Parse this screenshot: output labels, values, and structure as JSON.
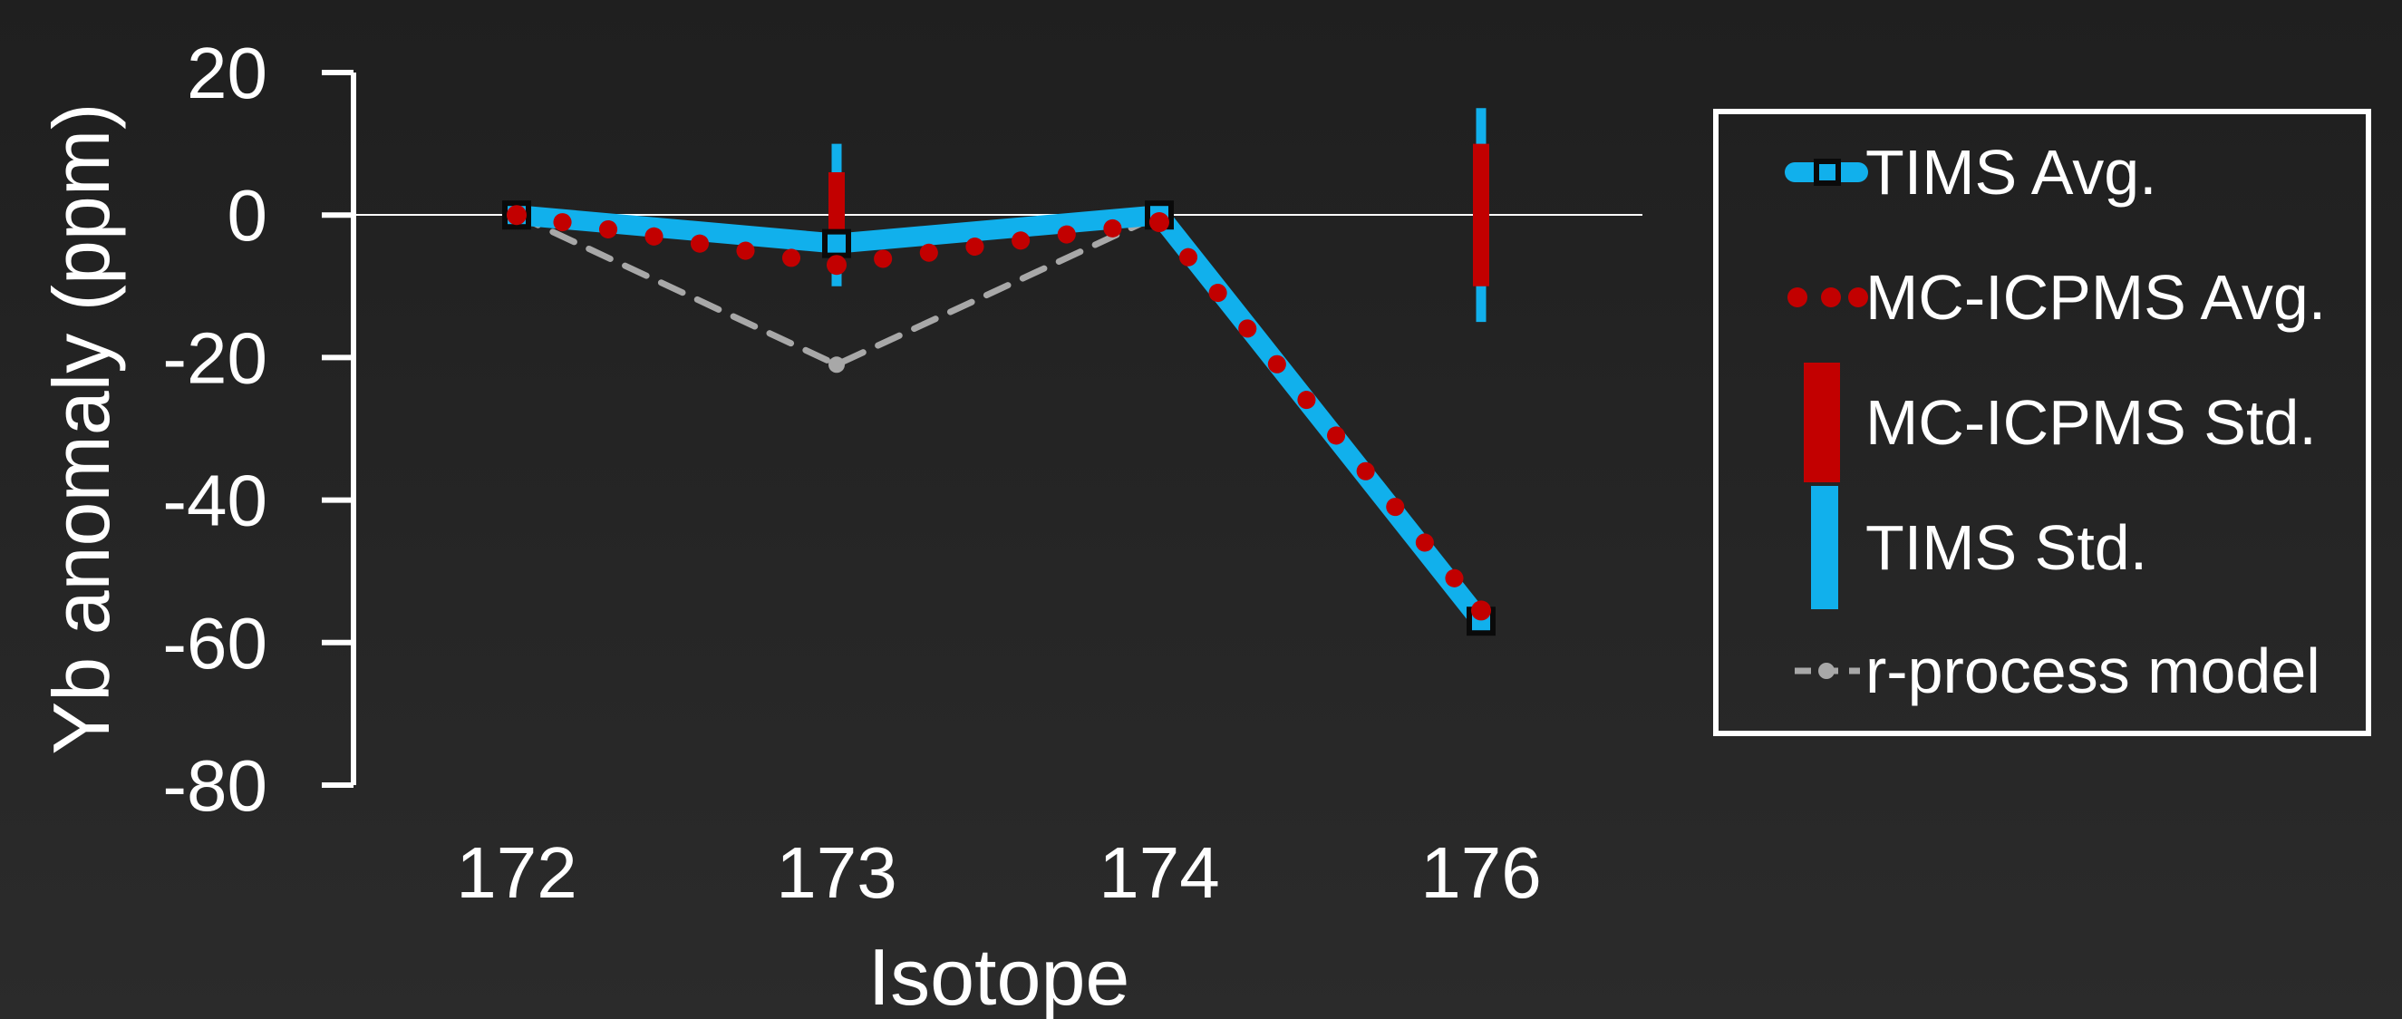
{
  "chart_data": {
    "type": "line",
    "title": "",
    "xlabel": "Isotope",
    "ylabel": "Yb anomaly (ppm)",
    "categories": [
      "172",
      "173",
      "174",
      "176"
    ],
    "ylim": [
      -80,
      20
    ],
    "yticks": [
      "20",
      "0",
      "-20",
      "-40",
      "-60",
      "-80"
    ],
    "ytick_values": [
      20,
      0,
      -20,
      -40,
      -60,
      -80
    ],
    "grid": false,
    "zero_line": true,
    "legend_position": "right",
    "series": [
      {
        "name": "TIMS Avg.",
        "values": [
          0,
          -4,
          0,
          -57
        ],
        "color": "#11b0ec",
        "marker": "square"
      },
      {
        "name": "MC-ICPMS Avg.",
        "values": [
          0,
          -7,
          -1,
          -55.5
        ],
        "color": "#c20000",
        "marker": "dots"
      },
      {
        "name": "MC-ICPMS Std.",
        "ranges": [
          null,
          [
            -6,
            6
          ],
          null,
          [
            -10,
            10
          ]
        ],
        "color": "#c20000"
      },
      {
        "name": "TIMS Std.",
        "ranges": [
          null,
          [
            -10,
            10
          ],
          null,
          [
            -15,
            15
          ]
        ],
        "color": "#11b0ec"
      },
      {
        "name": "r-process model",
        "values": [
          0,
          -21,
          0,
          -57
        ],
        "color": "#a8a8a8",
        "marker": "circle"
      }
    ]
  }
}
